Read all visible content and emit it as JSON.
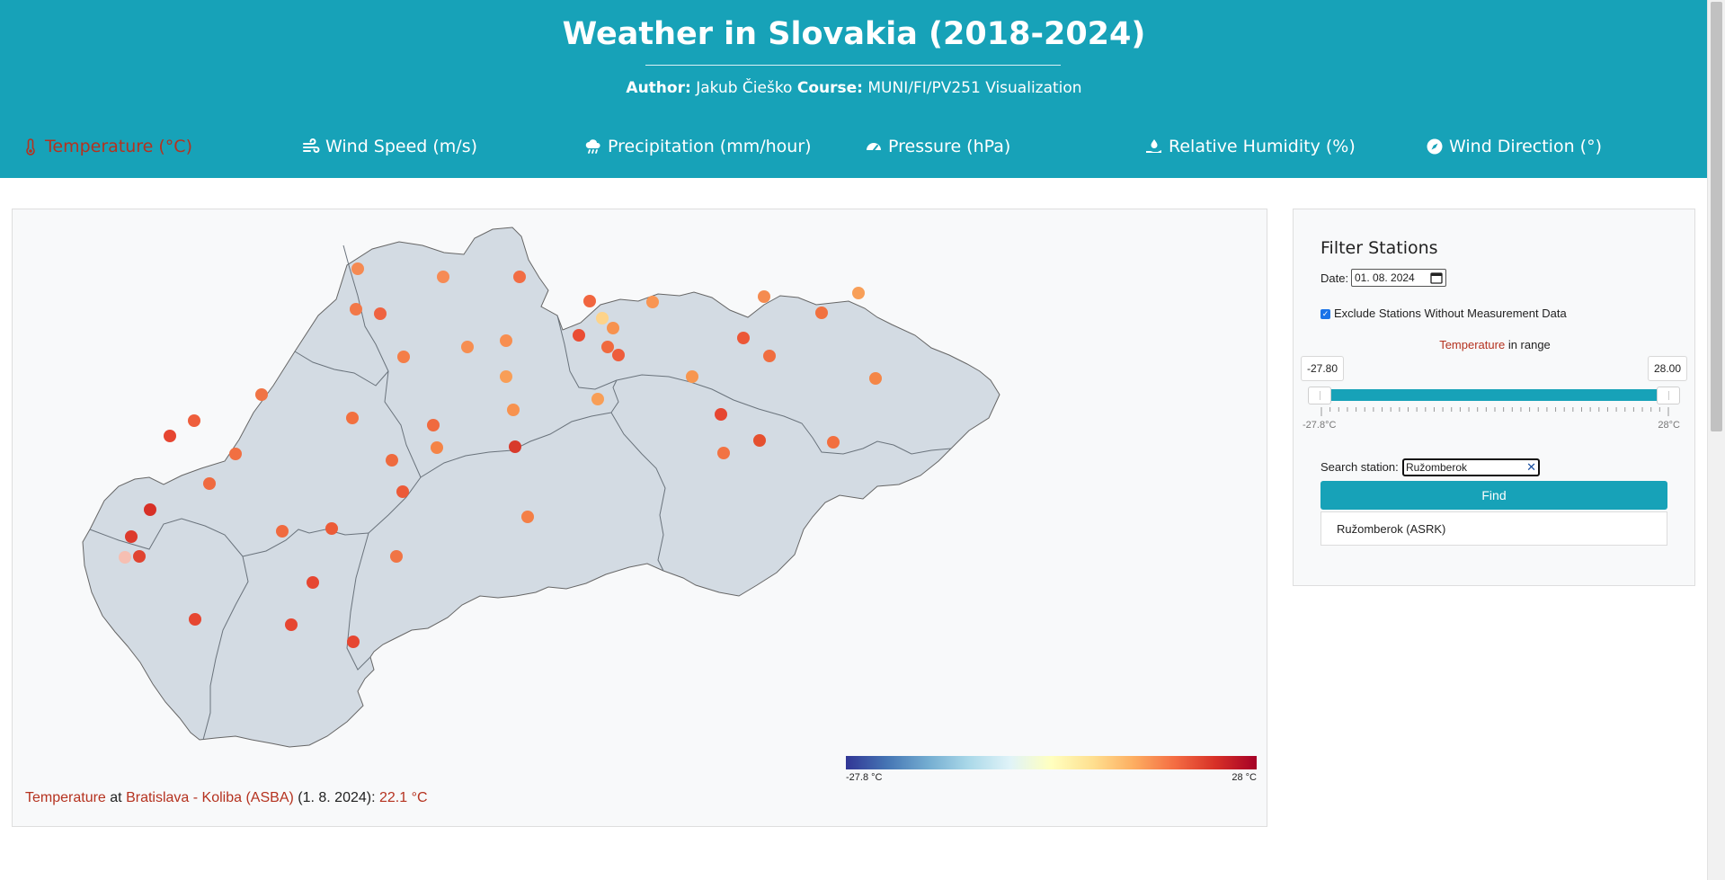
{
  "header": {
    "title": "Weather in Slovakia (2018-2024)",
    "author_label": "Author:",
    "author_name": "Jakub Čieško",
    "course_label": "Course:",
    "course_name": "MUNI/FI/PV251 Visualization"
  },
  "nav": {
    "items": [
      {
        "label": "Temperature (°C)",
        "icon": "thermometer-icon",
        "active": true
      },
      {
        "label": "Wind Speed (m/s)",
        "icon": "wind-icon"
      },
      {
        "label": "Precipitation (mm/hour)",
        "icon": "cloud-rain-icon"
      },
      {
        "label": "Pressure (hPa)",
        "icon": "gauge-icon"
      },
      {
        "label": "Relative Humidity (%)",
        "icon": "hand-droplet-icon"
      },
      {
        "label": "Wind Direction (°)",
        "icon": "compass-icon"
      }
    ]
  },
  "map": {
    "legend_min": "-27.8 °C",
    "legend_max": "28 °C",
    "status": {
      "variable": "Temperature",
      "at": "at",
      "station": "Bratislava - Koliba (ASBA)",
      "date": "(1. 8. 2024):",
      "value": "22.1 °C"
    }
  },
  "filter": {
    "title": "Filter Stations",
    "date_label": "Date:",
    "date_value": "01. 08. 2024",
    "exclude_label": "Exclude Stations Without Measurement Data",
    "exclude_checked": true,
    "range_variable": "Temperature",
    "range_suffix": "in range",
    "range_min_value": "-27.80",
    "range_max_value": "28.00",
    "range_min_label": "-27.8°C",
    "range_max_label": "28°C",
    "search_label": "Search station:",
    "search_value": "Ružomberok",
    "find_label": "Find",
    "result": "Ružomberok (ASRK)"
  },
  "colors": {
    "header_bg": "#17a2b8",
    "active_nav": "#b5321f",
    "map_fill": "#d3dbe3"
  }
}
